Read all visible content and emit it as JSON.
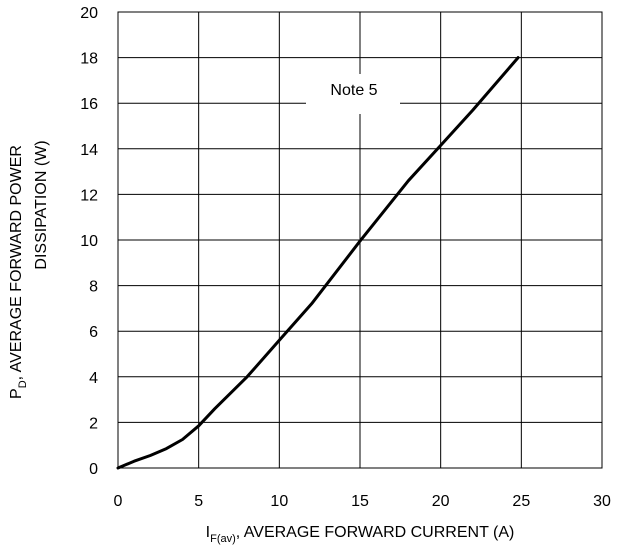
{
  "chart_data": {
    "type": "line",
    "title": "",
    "xlabel_main": "I",
    "xlabel_sub": "F(av)",
    "xlabel_rest": ", AVERAGE FORWARD CURRENT (A)",
    "ylabel_line1_main": "P",
    "ylabel_line1_sub": "D",
    "ylabel_line1_rest": ", AVERAGE FORWARD POWER",
    "ylabel_line2": "DISSIPATION (W)",
    "xlim": [
      0,
      30
    ],
    "ylim": [
      0,
      20
    ],
    "x_ticks": [
      "0",
      "5",
      "10",
      "15",
      "20",
      "25",
      "30"
    ],
    "y_ticks": [
      "0",
      "2",
      "4",
      "6",
      "8",
      "10",
      "12",
      "14",
      "16",
      "18",
      "20"
    ],
    "grid": true,
    "annotation": "Note 5",
    "series": [
      {
        "color": "#000000",
        "points": [
          [
            0,
            0
          ],
          [
            1,
            0.3
          ],
          [
            2,
            0.55
          ],
          [
            3,
            0.85
          ],
          [
            4,
            1.25
          ],
          [
            5,
            1.85
          ],
          [
            6,
            2.6
          ],
          [
            8,
            4.0
          ],
          [
            10,
            5.6
          ],
          [
            12,
            7.2
          ],
          [
            15,
            9.95
          ],
          [
            18,
            12.6
          ],
          [
            20,
            14.15
          ],
          [
            22,
            15.7
          ],
          [
            24.8,
            18.0
          ]
        ]
      }
    ]
  }
}
